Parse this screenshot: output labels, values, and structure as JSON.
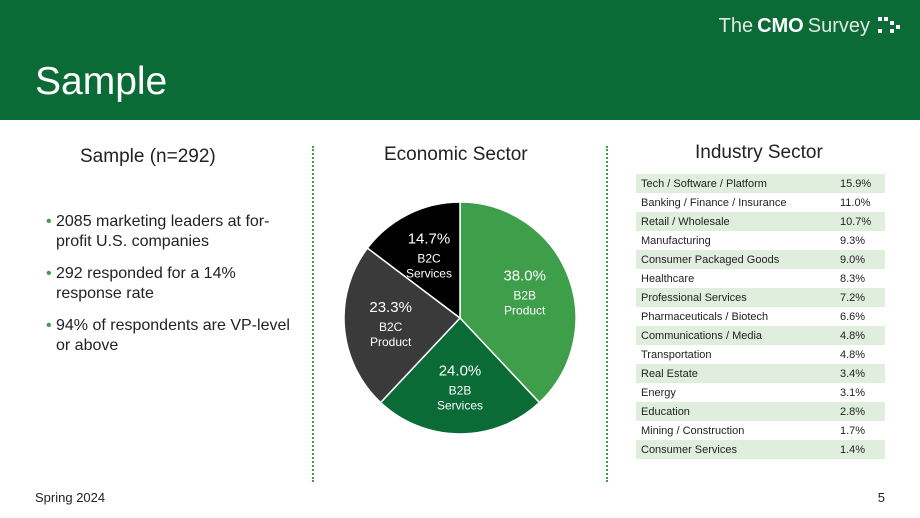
{
  "header": {
    "title": "Sample",
    "brand": {
      "prefix": "The",
      "name": "CMO",
      "suffix": "Survey"
    }
  },
  "left_panel": {
    "title": "Sample   (n=292)",
    "bullets": [
      "2085 marketing leaders at for-profit U.S. companies",
      "292 responded for a 14% response rate",
      "94% of respondents are VP-level or above"
    ]
  },
  "chart_data": {
    "type": "pie",
    "title": "Economic Sector",
    "slices": [
      {
        "label_line1": "B2B",
        "label_line2": "Product",
        "value": 38.0,
        "display": "38.0%",
        "color": "#3f9e4a"
      },
      {
        "label_line1": "B2B",
        "label_line2": "Services",
        "value": 24.0,
        "display": "24.0%",
        "color": "#0b6b37"
      },
      {
        "label_line1": "B2C",
        "label_line2": "Product",
        "value": 23.3,
        "display": "23.3%",
        "color": "#3a3a3a"
      },
      {
        "label_line1": "B2C",
        "label_line2": "Services",
        "value": 14.7,
        "display": "14.7%",
        "color": "#000000"
      }
    ]
  },
  "industry": {
    "title": "Industry Sector",
    "rows": [
      {
        "name": "Tech / Software / Platform",
        "value": "15.9%"
      },
      {
        "name": "Banking / Finance / Insurance",
        "value": "11.0%"
      },
      {
        "name": "Retail / Wholesale",
        "value": "10.7%"
      },
      {
        "name": "Manufacturing",
        "value": "9.3%"
      },
      {
        "name": "Consumer Packaged Goods",
        "value": "9.0%"
      },
      {
        "name": "Healthcare",
        "value": "8.3%"
      },
      {
        "name": "Professional Services",
        "value": "7.2%"
      },
      {
        "name": "Pharmaceuticals / Biotech",
        "value": "6.6%"
      },
      {
        "name": "Communications / Media",
        "value": "4.8%"
      },
      {
        "name": "Transportation",
        "value": "4.8%"
      },
      {
        "name": "Real Estate",
        "value": "3.4%"
      },
      {
        "name": "Energy",
        "value": "3.1%"
      },
      {
        "name": "Education",
        "value": "2.8%"
      },
      {
        "name": "Mining / Construction",
        "value": "1.7%"
      },
      {
        "name": "Consumer Services",
        "value": "1.4%"
      }
    ]
  },
  "footer": {
    "date": "Spring 2024",
    "page": "5"
  }
}
